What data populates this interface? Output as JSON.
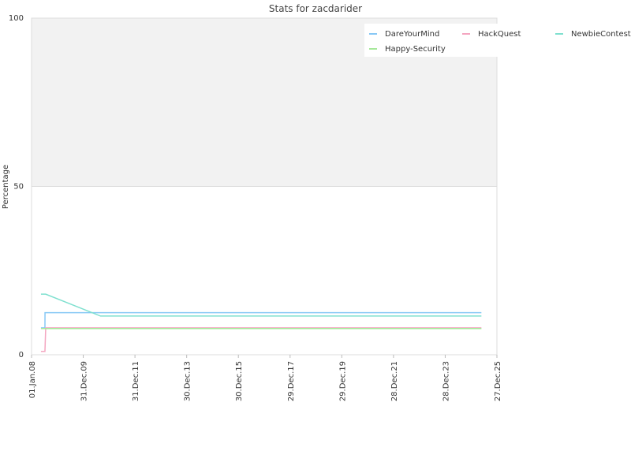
{
  "chart_data": {
    "type": "line",
    "title": "Stats for zacdarider",
    "y_label": "Percentage",
    "ylim": [
      0,
      100
    ],
    "yticks": [
      0,
      50,
      100
    ],
    "xlim": [
      "2008-01-01",
      "2025-12-27"
    ],
    "xticks": [
      {
        "value": "2008-01-01",
        "label": "01.Jan.08"
      },
      {
        "value": "2009-12-31",
        "label": "31.Dec.09"
      },
      {
        "value": "2011-12-31",
        "label": "31.Dec.11"
      },
      {
        "value": "2013-12-30",
        "label": "30.Dec.13"
      },
      {
        "value": "2015-12-30",
        "label": "30.Dec.15"
      },
      {
        "value": "2017-12-29",
        "label": "29.Dec.17"
      },
      {
        "value": "2019-12-29",
        "label": "29.Dec.19"
      },
      {
        "value": "2021-12-28",
        "label": "28.Dec.21"
      },
      {
        "value": "2023-12-28",
        "label": "28.Dec.23"
      },
      {
        "value": "2025-12-27",
        "label": "27.Dec.25"
      }
    ],
    "grid": true,
    "upper_band_color": "#f2f2f2",
    "legend": "top-right",
    "series": [
      {
        "name": "DareYourMind",
        "color": "#87c8f5",
        "x": [
          "2008-05-13",
          "2008-07-08",
          "2008-07-09",
          "2025-05-22"
        ],
        "values": [
          8,
          8,
          12.5,
          12.5
        ]
      },
      {
        "name": "HackQuest",
        "color": "#f4a6c0",
        "x": [
          "2008-05-13",
          "2008-07-08",
          "2008-07-19",
          "2025-05-22"
        ],
        "values": [
          1,
          1,
          8,
          8
        ]
      },
      {
        "name": "NewbieContest",
        "color": "#7fe0cf",
        "x": [
          "2008-05-13",
          "2008-07-19",
          "2010-09-01",
          "2025-05-22"
        ],
        "values": [
          18,
          18,
          11.5,
          11.5
        ]
      },
      {
        "name": "Happy-Security",
        "color": "#a6e89a",
        "x": [
          "2008-05-13",
          "2025-05-22"
        ],
        "values": [
          7.8,
          7.8
        ]
      }
    ]
  }
}
